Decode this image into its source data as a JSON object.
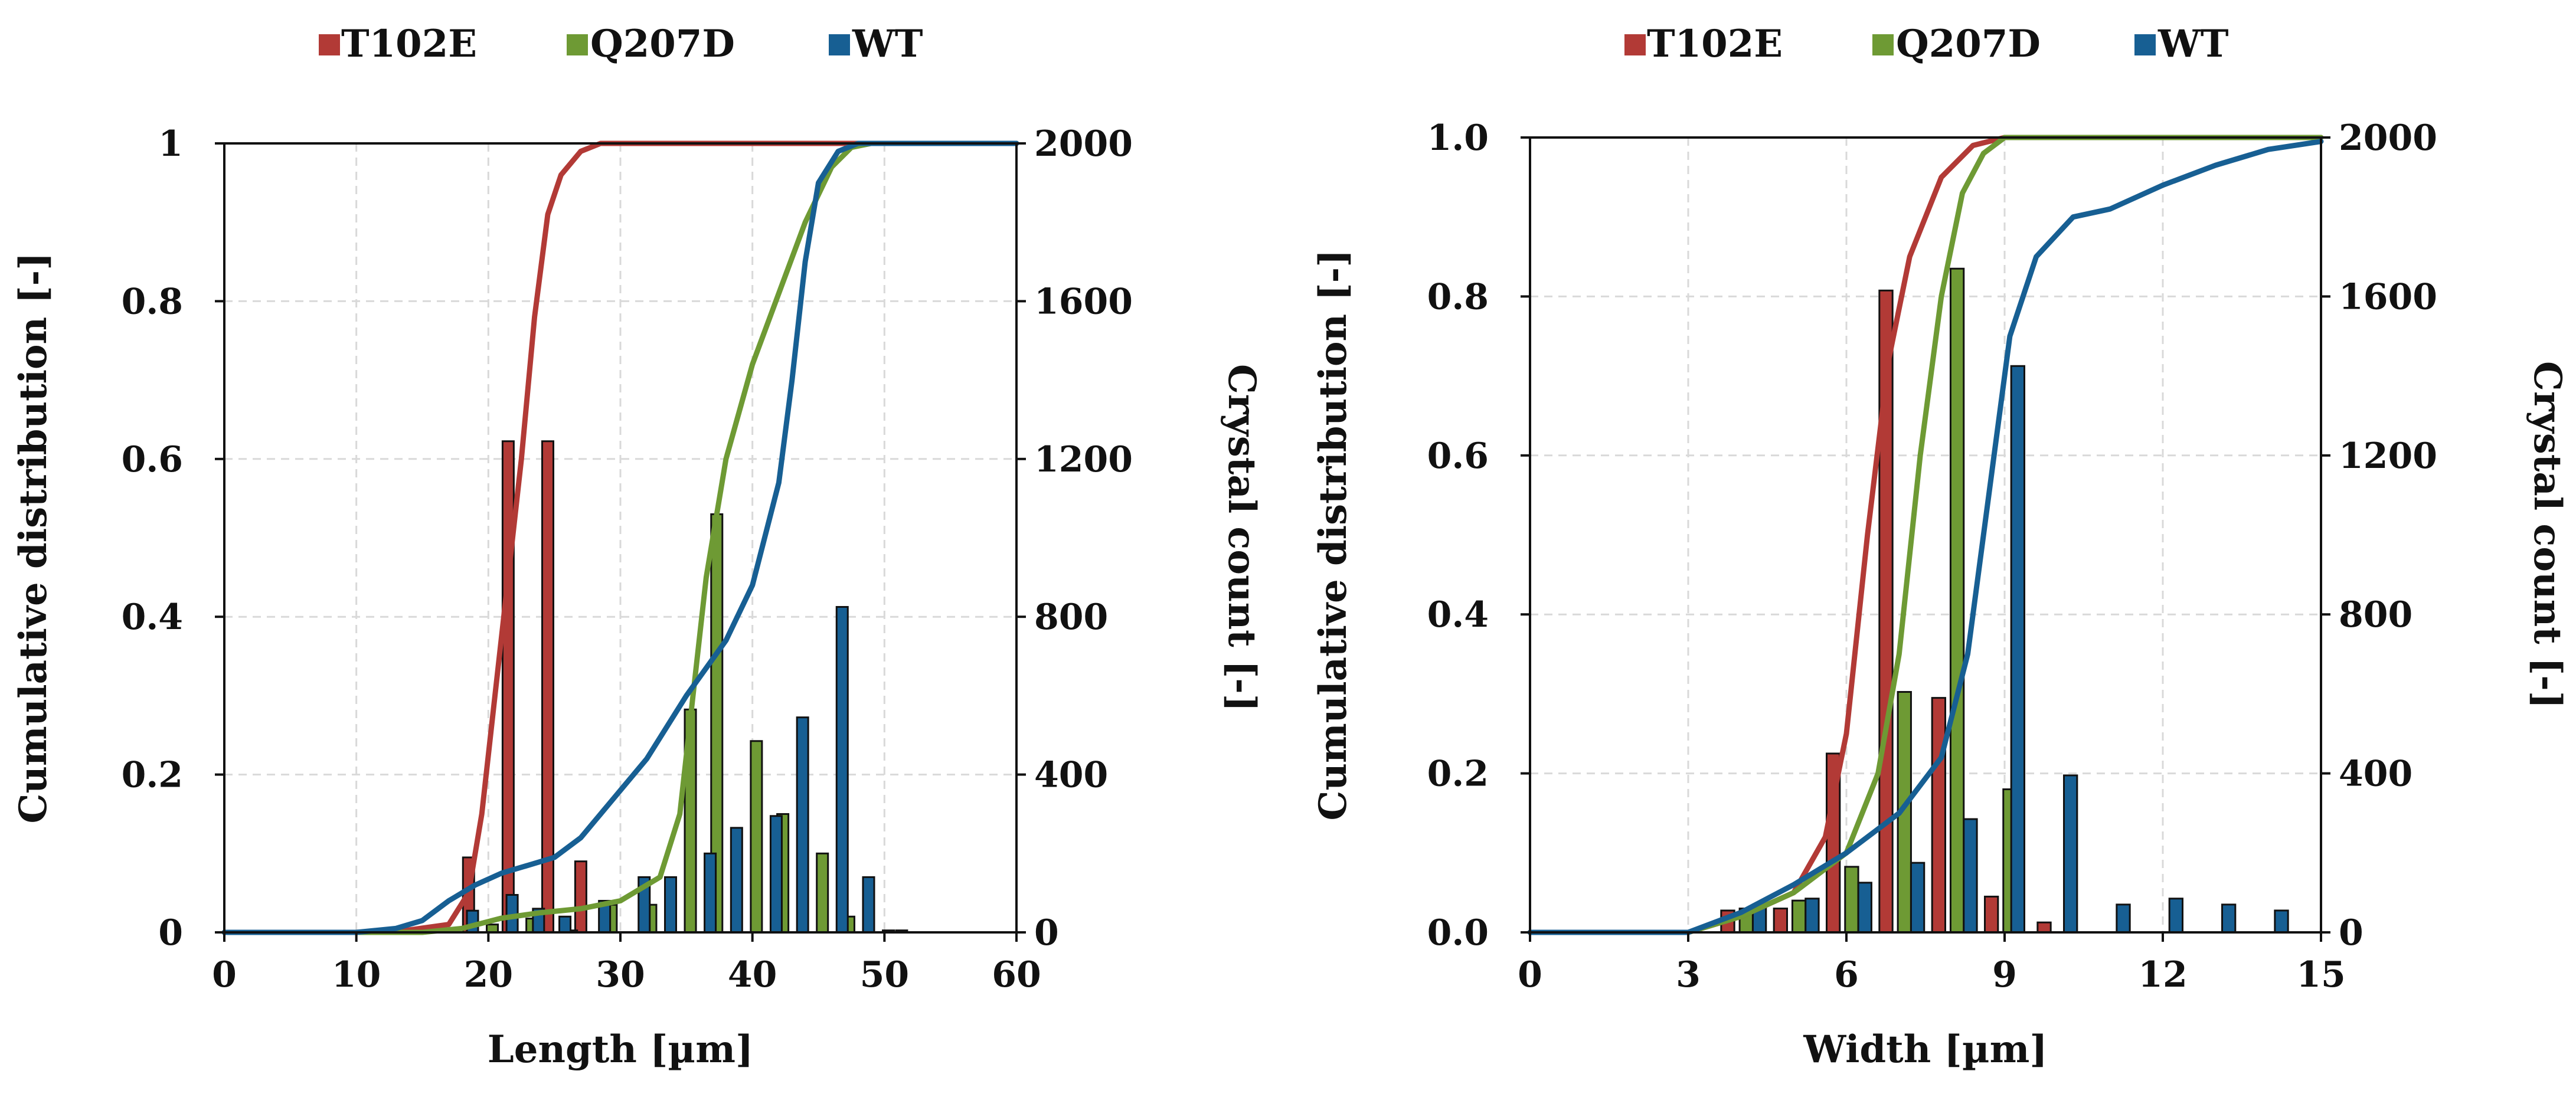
{
  "colors": {
    "T102E": "#b23a36",
    "Q207D": "#6e9a34",
    "WT": "#175f93",
    "grid": "#d9d9d9",
    "axis": "#111111",
    "bar_edge": "#111111"
  },
  "chart_data": [
    {
      "type": "bar+line",
      "xlabel": "Length [µm]",
      "ylabel_left": "Cumulative distribution [-]",
      "ylabel_right": "Crystal count [-]",
      "xlim": [
        0,
        60
      ],
      "x_ticks": [
        "0",
        "10",
        "20",
        "30",
        "40",
        "50",
        "60"
      ],
      "ylim_left": [
        0,
        1
      ],
      "y_ticks_left": [
        "0",
        "0.2",
        "0.4",
        "0.6",
        "0.8",
        "1"
      ],
      "ylim_right": [
        0,
        2000
      ],
      "y_ticks_right": [
        "0",
        "400",
        "800",
        "1200",
        "1600",
        "2000"
      ],
      "grid": true,
      "legend": {
        "position": "top-center",
        "entries": [
          "T102E",
          "Q207D",
          "WT"
        ]
      },
      "bar_width": 0.85,
      "series": [
        {
          "name": "T102E",
          "bars": [
            [
              15.5,
              10
            ],
            [
              18.5,
              190
            ],
            [
              21.5,
              1245
            ],
            [
              24.5,
              1245
            ],
            [
              27,
              180
            ]
          ],
          "cdf": [
            [
              0,
              0
            ],
            [
              10,
              0
            ],
            [
              14,
              0.003
            ],
            [
              17,
              0.01
            ],
            [
              18.5,
              0.05
            ],
            [
              19.5,
              0.15
            ],
            [
              20.5,
              0.3
            ],
            [
              21.5,
              0.45
            ],
            [
              22.5,
              0.6
            ],
            [
              23.5,
              0.78
            ],
            [
              24.5,
              0.91
            ],
            [
              25.5,
              0.96
            ],
            [
              27,
              0.99
            ],
            [
              28.5,
              1
            ],
            [
              60,
              1
            ]
          ]
        },
        {
          "name": "Q207D",
          "bars": [
            [
              20.3,
              20
            ],
            [
              23.3,
              35
            ],
            [
              26.3,
              5
            ],
            [
              29.3,
              70
            ],
            [
              32.3,
              70
            ],
            [
              35.3,
              565
            ],
            [
              37.3,
              1060
            ],
            [
              40.3,
              485
            ],
            [
              42.3,
              300
            ],
            [
              45.3,
              200
            ],
            [
              47.3,
              40
            ],
            [
              50.3,
              5
            ]
          ],
          "cdf": [
            [
              0,
              0
            ],
            [
              15,
              0
            ],
            [
              18,
              0.005
            ],
            [
              21,
              0.018
            ],
            [
              24,
              0.025
            ],
            [
              27,
              0.03
            ],
            [
              30,
              0.04
            ],
            [
              33,
              0.07
            ],
            [
              34.5,
              0.15
            ],
            [
              35.5,
              0.3
            ],
            [
              36.5,
              0.45
            ],
            [
              38,
              0.6
            ],
            [
              40,
              0.72
            ],
            [
              42,
              0.81
            ],
            [
              44,
              0.9
            ],
            [
              46,
              0.97
            ],
            [
              47.5,
              0.995
            ],
            [
              49,
              1
            ],
            [
              60,
              1
            ]
          ]
        },
        {
          "name": "WT",
          "bars": [
            [
              18.8,
              55
            ],
            [
              21.8,
              95
            ],
            [
              23.8,
              60
            ],
            [
              25.8,
              40
            ],
            [
              28.8,
              80
            ],
            [
              31.8,
              140
            ],
            [
              33.8,
              140
            ],
            [
              36.8,
              200
            ],
            [
              38.8,
              265
            ],
            [
              41.8,
              295
            ],
            [
              43.8,
              545
            ],
            [
              46.8,
              825
            ],
            [
              48.8,
              140
            ],
            [
              51.3,
              5
            ]
          ],
          "cdf": [
            [
              0,
              0
            ],
            [
              10,
              0
            ],
            [
              13,
              0.005
            ],
            [
              15,
              0.015
            ],
            [
              17,
              0.04
            ],
            [
              19,
              0.06
            ],
            [
              21,
              0.075
            ],
            [
              23,
              0.085
            ],
            [
              25,
              0.095
            ],
            [
              27,
              0.12
            ],
            [
              29,
              0.16
            ],
            [
              32,
              0.22
            ],
            [
              35,
              0.3
            ],
            [
              38,
              0.37
            ],
            [
              40,
              0.44
            ],
            [
              42,
              0.57
            ],
            [
              43,
              0.7
            ],
            [
              44,
              0.85
            ],
            [
              45,
              0.95
            ],
            [
              46.5,
              0.99
            ],
            [
              48,
              1
            ],
            [
              60,
              1
            ]
          ]
        }
      ]
    },
    {
      "type": "bar+line",
      "xlabel": "Width [µm]",
      "ylabel_left": "Cumulative distribution  [-]",
      "ylabel_right": "Crystal count [-]",
      "xlim": [
        0,
        15
      ],
      "x_ticks": [
        "0",
        "3",
        "6",
        "9",
        "12",
        "15"
      ],
      "ylim_left": [
        0,
        1
      ],
      "y_ticks_left": [
        "0.0",
        "0.2",
        "0.4",
        "0.6",
        "0.8",
        "1.0"
      ],
      "ylim_right": [
        0,
        2000
      ],
      "y_ticks_right": [
        "0",
        "400",
        "800",
        "1200",
        "1600",
        "2000"
      ],
      "grid": true,
      "legend": {
        "position": "top-center",
        "entries": [
          "T102E",
          "Q207D",
          "WT"
        ]
      },
      "bar_width": 0.25,
      "series": [
        {
          "name": "T102E",
          "bars": [
            [
              3.75,
              55
            ],
            [
              4.75,
              60
            ],
            [
              5.75,
              450
            ],
            [
              6.75,
              1615
            ],
            [
              7.75,
              590
            ],
            [
              8.75,
              90
            ],
            [
              9.75,
              25
            ]
          ],
          "cdf": [
            [
              0,
              0
            ],
            [
              3,
              0
            ],
            [
              4,
              0.02
            ],
            [
              5,
              0.05
            ],
            [
              5.6,
              0.12
            ],
            [
              6,
              0.25
            ],
            [
              6.4,
              0.5
            ],
            [
              6.8,
              0.72
            ],
            [
              7.2,
              0.85
            ],
            [
              7.8,
              0.95
            ],
            [
              8.4,
              0.99
            ],
            [
              9,
              1
            ],
            [
              15,
              1
            ]
          ]
        },
        {
          "name": "Q207D",
          "bars": [
            [
              4.1,
              60
            ],
            [
              5.1,
              80
            ],
            [
              6.1,
              165
            ],
            [
              7.1,
              605
            ],
            [
              8.1,
              1670
            ],
            [
              9.1,
              360
            ]
          ],
          "cdf": [
            [
              0,
              0
            ],
            [
              3,
              0
            ],
            [
              4,
              0.02
            ],
            [
              5,
              0.05
            ],
            [
              6,
              0.1
            ],
            [
              6.6,
              0.2
            ],
            [
              7,
              0.35
            ],
            [
              7.4,
              0.6
            ],
            [
              7.8,
              0.8
            ],
            [
              8.2,
              0.93
            ],
            [
              8.6,
              0.98
            ],
            [
              9,
              1
            ],
            [
              15,
              1
            ]
          ]
        },
        {
          "name": "WT",
          "bars": [
            [
              4.35,
              70
            ],
            [
              5.35,
              85
            ],
            [
              6.35,
              125
            ],
            [
              7.35,
              175
            ],
            [
              8.35,
              285
            ],
            [
              9.25,
              1425
            ],
            [
              10.25,
              395
            ],
            [
              11.25,
              70
            ],
            [
              12.25,
              85
            ],
            [
              13.25,
              70
            ],
            [
              14.25,
              55
            ]
          ],
          "cdf": [
            [
              0,
              0
            ],
            [
              3,
              0
            ],
            [
              4,
              0.025
            ],
            [
              5,
              0.06
            ],
            [
              6,
              0.1
            ],
            [
              7,
              0.15
            ],
            [
              7.8,
              0.22
            ],
            [
              8.3,
              0.35
            ],
            [
              8.7,
              0.55
            ],
            [
              9.1,
              0.75
            ],
            [
              9.6,
              0.85
            ],
            [
              10.3,
              0.9
            ],
            [
              11,
              0.91
            ],
            [
              12,
              0.94
            ],
            [
              13,
              0.965
            ],
            [
              14,
              0.985
            ],
            [
              15,
              0.995
            ]
          ]
        }
      ]
    }
  ]
}
